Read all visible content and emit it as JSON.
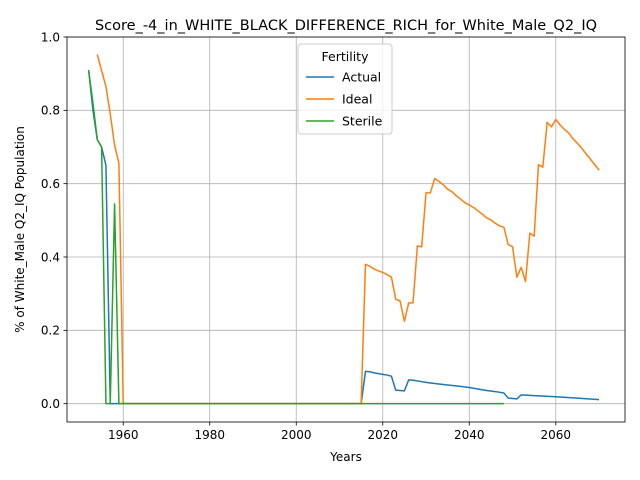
{
  "chart_data": {
    "type": "line",
    "title": "Score_-4_in_WHITE_BLACK_DIFFERENCE_RICH_for_White_Male_Q2_IQ",
    "xlabel": "Years",
    "ylabel": "% of White_Male Q2_IQ Population",
    "xlim": [
      1947,
      2076
    ],
    "ylim": [
      -0.05,
      1.0
    ],
    "xticks": [
      1960,
      1980,
      2000,
      2020,
      2040,
      2060
    ],
    "yticks": [
      0.0,
      0.2,
      0.4,
      0.6,
      0.8,
      1.0
    ],
    "xtick_labels": [
      "1960",
      "1980",
      "2000",
      "2020",
      "2040",
      "2060"
    ],
    "ytick_labels": [
      "0.0",
      "0.2",
      "0.4",
      "0.6",
      "0.8",
      "1.0"
    ],
    "grid": true,
    "legend": {
      "title": "Fertility",
      "placement": "upper-center"
    },
    "series": [
      {
        "name": "Actual",
        "color": "#1f77b4",
        "points": [
          [
            1952,
            0.91
          ],
          [
            1953,
            0.8
          ],
          [
            1954,
            0.72
          ],
          [
            1955,
            0.7
          ],
          [
            1956,
            0.65
          ],
          [
            1957,
            0.0
          ],
          [
            2015,
            0.0
          ],
          [
            2016,
            0.088
          ],
          [
            2017,
            0.087
          ],
          [
            2018,
            0.084
          ],
          [
            2019,
            0.082
          ],
          [
            2020,
            0.08
          ],
          [
            2021,
            0.078
          ],
          [
            2022,
            0.075
          ],
          [
            2023,
            0.037
          ],
          [
            2024,
            0.036
          ],
          [
            2025,
            0.035
          ],
          [
            2026,
            0.065
          ],
          [
            2027,
            0.064
          ],
          [
            2028,
            0.062
          ],
          [
            2030,
            0.058
          ],
          [
            2032,
            0.055
          ],
          [
            2035,
            0.051
          ],
          [
            2038,
            0.047
          ],
          [
            2040,
            0.044
          ],
          [
            2042,
            0.04
          ],
          [
            2044,
            0.036
          ],
          [
            2046,
            0.033
          ],
          [
            2048,
            0.029
          ],
          [
            2049,
            0.015
          ],
          [
            2051,
            0.013
          ],
          [
            2052,
            0.024
          ],
          [
            2055,
            0.022
          ],
          [
            2060,
            0.019
          ],
          [
            2065,
            0.015
          ],
          [
            2070,
            0.011
          ]
        ]
      },
      {
        "name": "Ideal",
        "color": "#ff7f0e",
        "points": [
          [
            1954,
            0.952
          ],
          [
            1956,
            0.865
          ],
          [
            1957,
            0.79
          ],
          [
            1958,
            0.705
          ],
          [
            1959,
            0.655
          ],
          [
            1960,
            0.0
          ],
          [
            2015,
            0.0
          ],
          [
            2016,
            0.38
          ],
          [
            2017,
            0.375
          ],
          [
            2018,
            0.367
          ],
          [
            2019,
            0.362
          ],
          [
            2020,
            0.358
          ],
          [
            2021,
            0.352
          ],
          [
            2022,
            0.345
          ],
          [
            2023,
            0.285
          ],
          [
            2024,
            0.28
          ],
          [
            2025,
            0.225
          ],
          [
            2026,
            0.275
          ],
          [
            2027,
            0.275
          ],
          [
            2028,
            0.43
          ],
          [
            2029,
            0.428
          ],
          [
            2030,
            0.575
          ],
          [
            2031,
            0.575
          ],
          [
            2032,
            0.614
          ],
          [
            2033,
            0.606
          ],
          [
            2034,
            0.597
          ],
          [
            2035,
            0.585
          ],
          [
            2036,
            0.578
          ],
          [
            2037,
            0.567
          ],
          [
            2038,
            0.558
          ],
          [
            2039,
            0.548
          ],
          [
            2040,
            0.542
          ],
          [
            2041,
            0.535
          ],
          [
            2042,
            0.526
          ],
          [
            2043,
            0.517
          ],
          [
            2044,
            0.507
          ],
          [
            2045,
            0.501
          ],
          [
            2046,
            0.492
          ],
          [
            2047,
            0.485
          ],
          [
            2048,
            0.481
          ],
          [
            2049,
            0.434
          ],
          [
            2050,
            0.428
          ],
          [
            2051,
            0.345
          ],
          [
            2052,
            0.372
          ],
          [
            2053,
            0.333
          ],
          [
            2054,
            0.465
          ],
          [
            2055,
            0.457
          ],
          [
            2056,
            0.652
          ],
          [
            2057,
            0.645
          ],
          [
            2058,
            0.767
          ],
          [
            2059,
            0.755
          ],
          [
            2060,
            0.775
          ],
          [
            2061,
            0.76
          ],
          [
            2062,
            0.748
          ],
          [
            2063,
            0.738
          ],
          [
            2064,
            0.722
          ],
          [
            2065,
            0.71
          ],
          [
            2066,
            0.697
          ],
          [
            2067,
            0.681
          ],
          [
            2068,
            0.667
          ],
          [
            2069,
            0.652
          ],
          [
            2070,
            0.637
          ]
        ]
      },
      {
        "name": "Sterile",
        "color": "#2ca02c",
        "points": [
          [
            1952,
            0.91
          ],
          [
            1953,
            0.82
          ],
          [
            1954,
            0.72
          ],
          [
            1955,
            0.7
          ],
          [
            1956,
            0.0
          ],
          [
            1957,
            0.0
          ],
          [
            1958,
            0.545
          ],
          [
            1959,
            0.0
          ],
          [
            2015,
            0.0
          ],
          [
            2030,
            0.0
          ],
          [
            2048,
            0.0
          ]
        ]
      }
    ]
  }
}
